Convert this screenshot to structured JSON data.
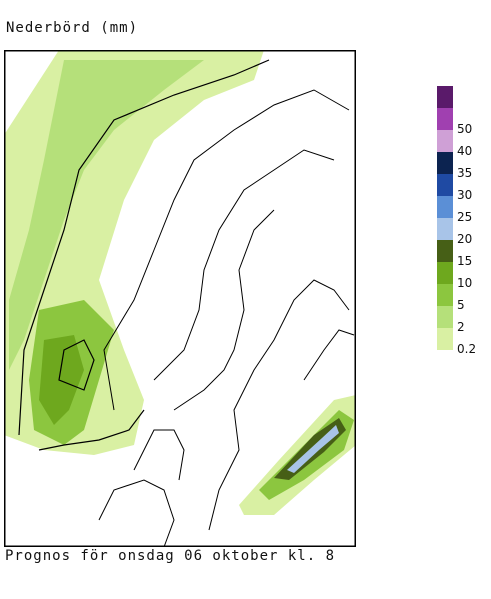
{
  "header": {
    "title": "Nederbörd (mm)"
  },
  "footer": {
    "caption": "Prognos för onsdag 06 oktober kl. 8"
  },
  "legend": {
    "items": [
      {
        "label": "0.2",
        "color": "#d9f0a3"
      },
      {
        "label": "2",
        "color": "#b5e07a"
      },
      {
        "label": "5",
        "color": "#8cc63f"
      },
      {
        "label": "10",
        "color": "#6ea81e"
      },
      {
        "label": "15",
        "color": "#465f16"
      },
      {
        "label": "20",
        "color": "#a8c4e8"
      },
      {
        "label": "25",
        "color": "#5b8fd6"
      },
      {
        "label": "30",
        "color": "#1f4aa3"
      },
      {
        "label": "35",
        "color": "#0c2350"
      },
      {
        "label": "40",
        "color": "#cfa0d6"
      },
      {
        "label": "50",
        "color": "#a040b0"
      },
      {
        "label": "",
        "color": "#5a1a6a"
      }
    ]
  }
}
